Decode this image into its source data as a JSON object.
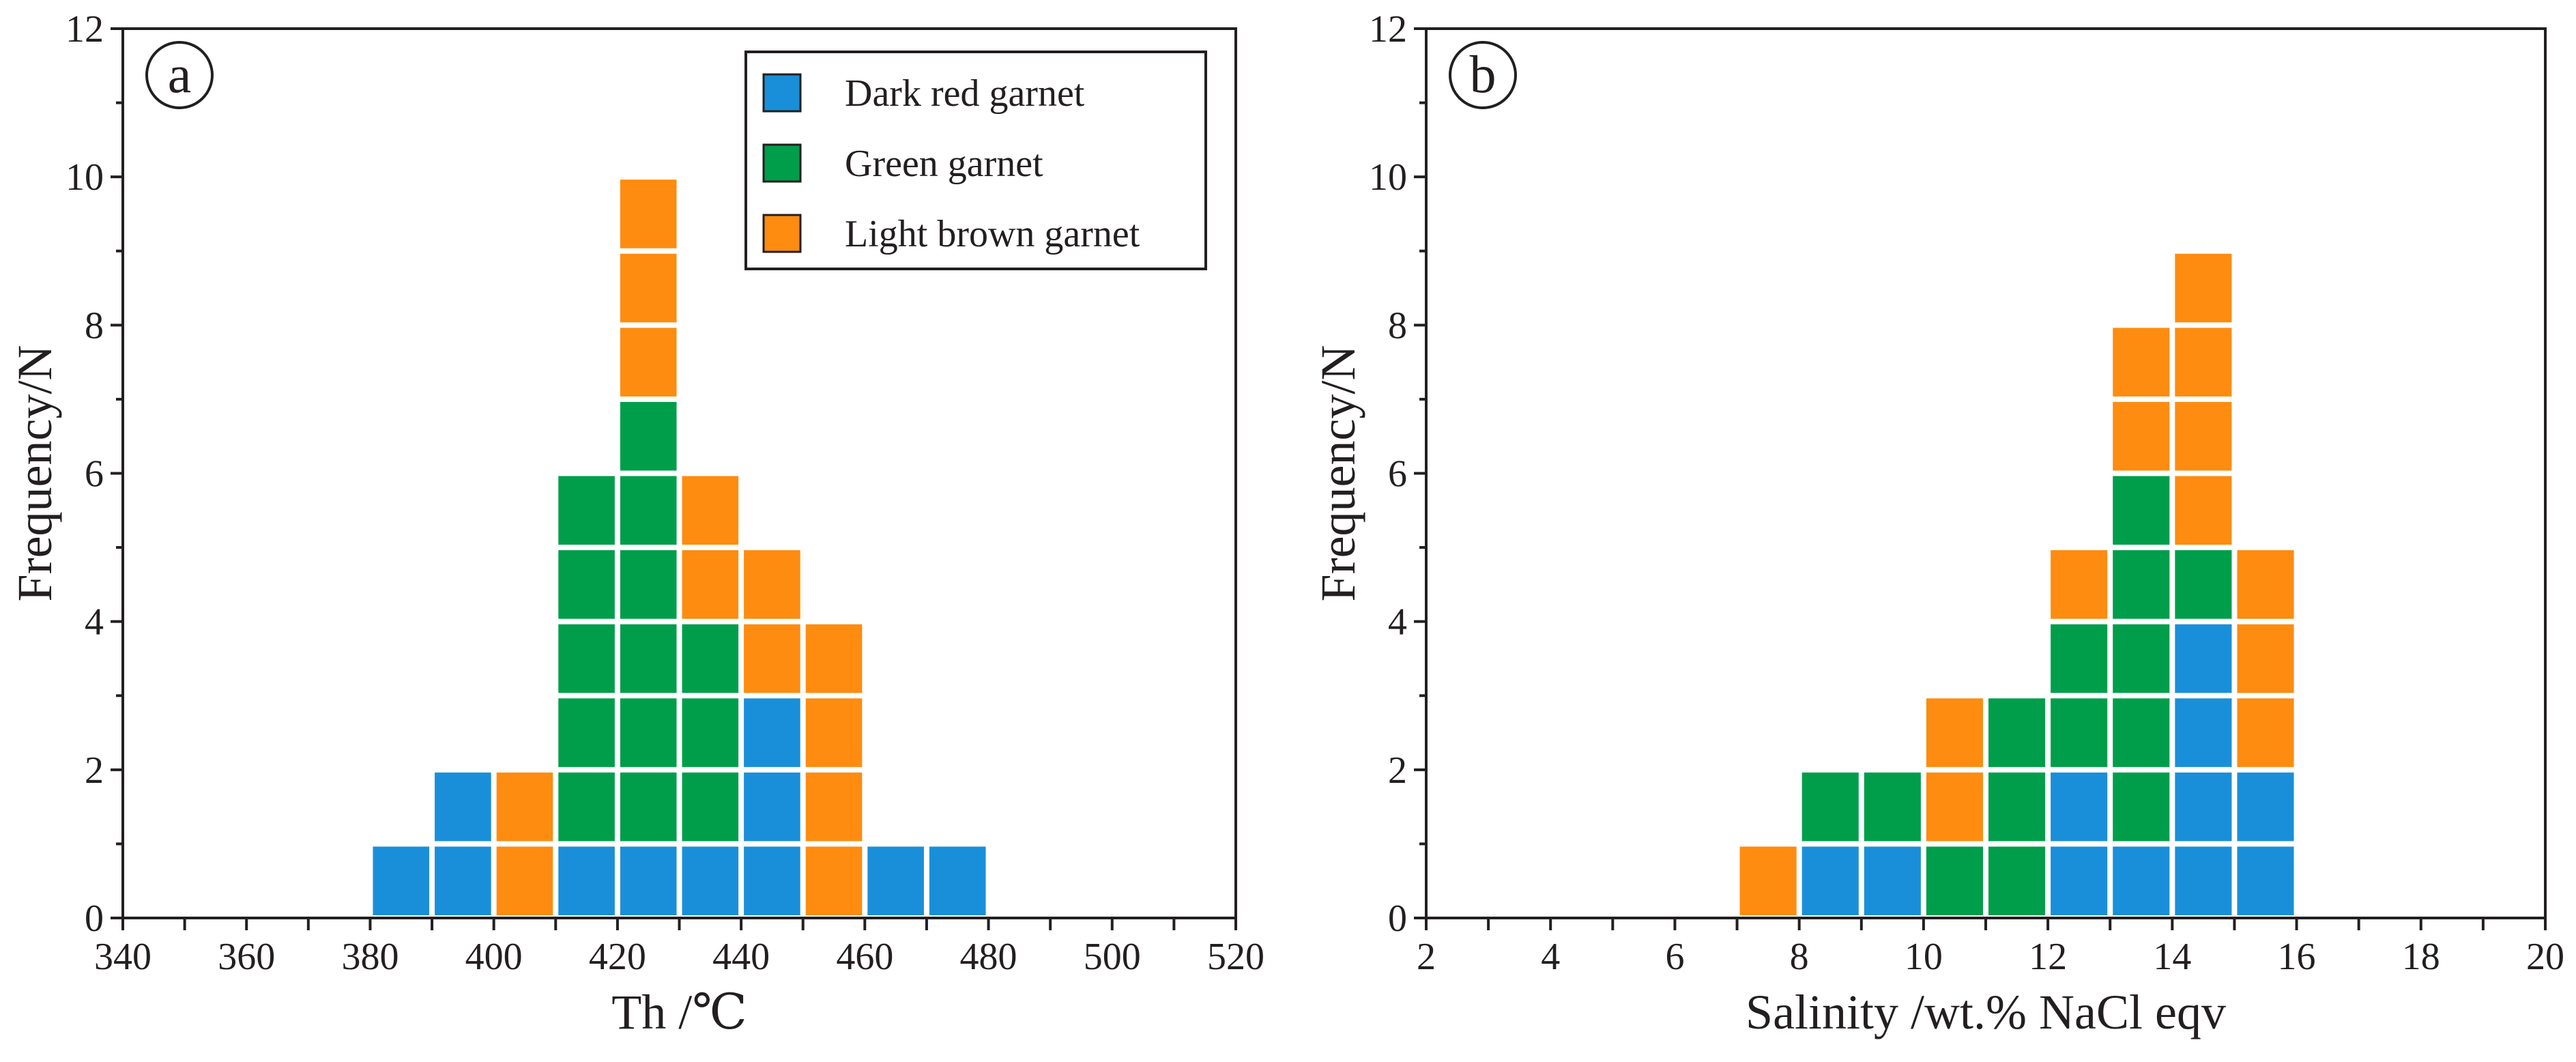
{
  "colors": {
    "dark_red_garnet": "#1a8fd9",
    "green_garnet": "#009e4a",
    "light_brown_garnet": "#fd8c10",
    "axis": "#231f20"
  },
  "chart_data": [
    {
      "panel": "a",
      "type": "bar",
      "stacked": true,
      "xlabel": "Th /℃",
      "ylabel": "Frequency/N",
      "xlim": [
        340,
        520
      ],
      "ylim": [
        0,
        12
      ],
      "x_ticks": [
        "340",
        "360",
        "380",
        "400",
        "420",
        "440",
        "460",
        "480",
        "500",
        "520"
      ],
      "y_ticks": [
        "0",
        "2",
        "4",
        "6",
        "8",
        "10",
        "12"
      ],
      "bin_width": 10,
      "bins": [
        380,
        390,
        400,
        410,
        420,
        430,
        440,
        450,
        460,
        470
      ],
      "series": [
        {
          "name": "Dark red garnet",
          "color_key": "dark_red_garnet",
          "values": [
            1,
            2,
            0,
            1,
            1,
            1,
            3,
            0,
            1,
            1
          ]
        },
        {
          "name": "Green garnet",
          "color_key": "green_garnet",
          "values": [
            0,
            0,
            0,
            5,
            6,
            3,
            0,
            0,
            0,
            0
          ]
        },
        {
          "name": "Light brown garnet",
          "color_key": "light_brown_garnet",
          "values": [
            0,
            0,
            2,
            0,
            3,
            2,
            2,
            4,
            0,
            0
          ]
        }
      ],
      "legend": {
        "position": "top-right",
        "entries": [
          "Dark red garnet",
          "Green garnet",
          "Light brown garnet"
        ]
      }
    },
    {
      "panel": "b",
      "type": "bar",
      "stacked": true,
      "xlabel": "Salinity /wt.% NaCl eqv",
      "ylabel": "Frequency/N",
      "xlim": [
        2,
        20
      ],
      "ylim": [
        0,
        12
      ],
      "x_ticks": [
        "2",
        "4",
        "6",
        "8",
        "10",
        "12",
        "14",
        "16",
        "18",
        "20"
      ],
      "y_ticks": [
        "0",
        "2",
        "4",
        "6",
        "8",
        "10",
        "12"
      ],
      "bin_width": 1,
      "bins": [
        7,
        8,
        9,
        10,
        11,
        12,
        13,
        14,
        15
      ],
      "series": [
        {
          "name": "Dark red garnet",
          "color_key": "dark_red_garnet",
          "values": [
            0,
            1,
            1,
            0,
            0,
            2,
            1,
            4,
            2
          ]
        },
        {
          "name": "Green garnet",
          "color_key": "green_garnet",
          "values": [
            0,
            1,
            1,
            1,
            3,
            2,
            5,
            1,
            0
          ]
        },
        {
          "name": "Light brown garnet",
          "color_key": "light_brown_garnet",
          "values": [
            1,
            0,
            0,
            2,
            0,
            1,
            2,
            4,
            3
          ]
        }
      ]
    }
  ]
}
